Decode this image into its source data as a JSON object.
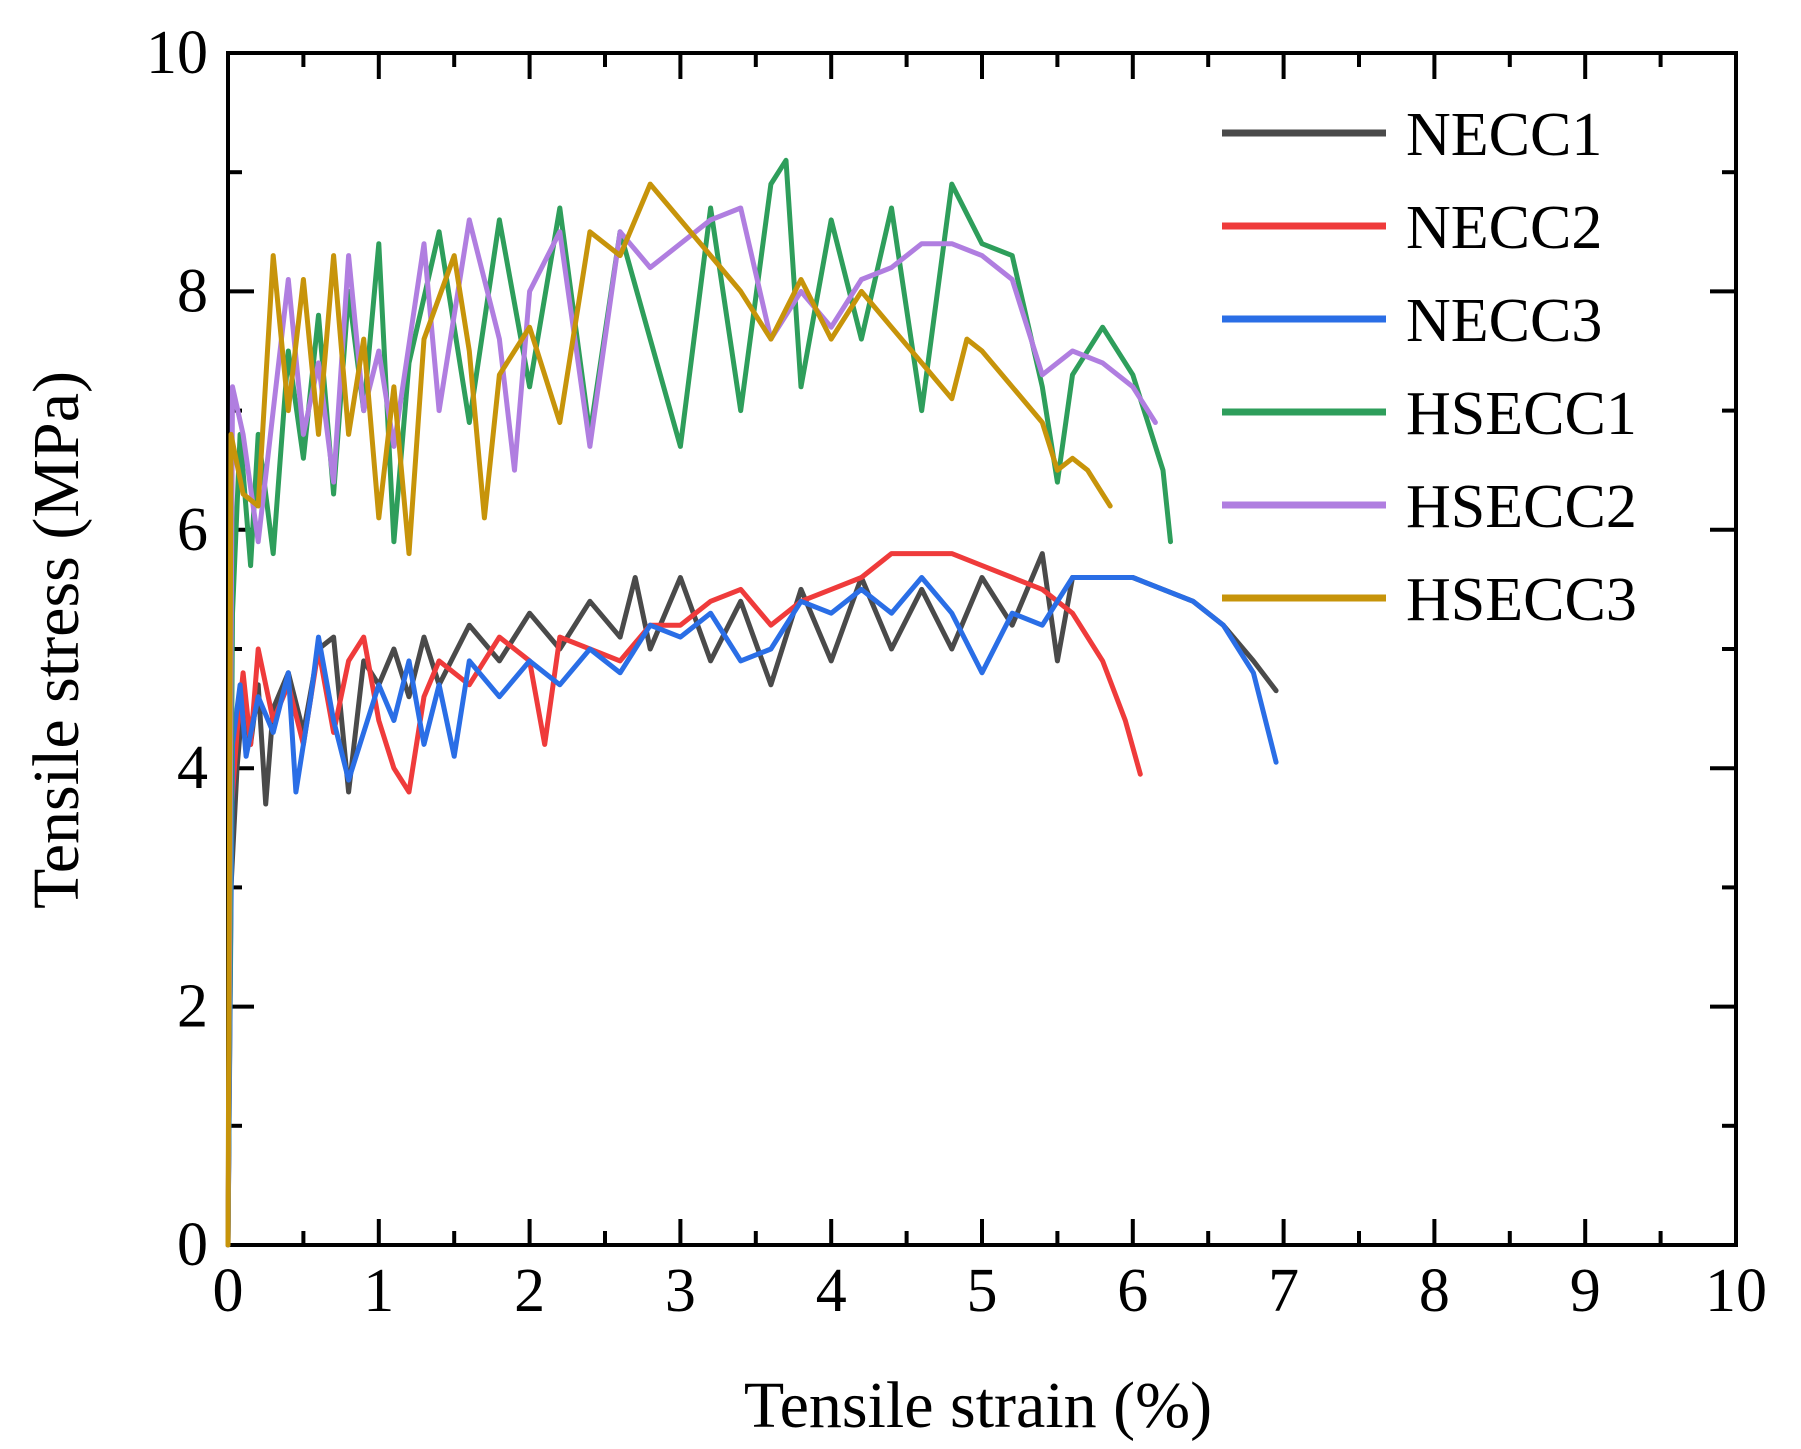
{
  "chart_data": {
    "type": "line",
    "title": "",
    "xlabel": "Tensile strain (%)",
    "ylabel": "Tensile stress (MPa)",
    "xlim": [
      0,
      10
    ],
    "ylim": [
      0,
      10
    ],
    "xticks": [
      0,
      1,
      2,
      3,
      4,
      5,
      6,
      7,
      8,
      9,
      10
    ],
    "yticks": [
      0,
      2,
      4,
      6,
      8,
      10
    ],
    "grid": false,
    "legend_position": "top-right",
    "series": [
      {
        "name": "NECC1",
        "color": "#4a4a4a",
        "points": [
          [
            0,
            0
          ],
          [
            0.02,
            3.0
          ],
          [
            0.06,
            4.0
          ],
          [
            0.1,
            4.6
          ],
          [
            0.15,
            4.2
          ],
          [
            0.2,
            4.7
          ],
          [
            0.25,
            3.7
          ],
          [
            0.3,
            4.5
          ],
          [
            0.4,
            4.8
          ],
          [
            0.5,
            4.3
          ],
          [
            0.6,
            5.0
          ],
          [
            0.7,
            5.1
          ],
          [
            0.8,
            3.8
          ],
          [
            0.9,
            4.9
          ],
          [
            1.0,
            4.7
          ],
          [
            1.1,
            5.0
          ],
          [
            1.2,
            4.6
          ],
          [
            1.3,
            5.1
          ],
          [
            1.4,
            4.7
          ],
          [
            1.6,
            5.2
          ],
          [
            1.8,
            4.9
          ],
          [
            2.0,
            5.3
          ],
          [
            2.2,
            5.0
          ],
          [
            2.4,
            5.4
          ],
          [
            2.6,
            5.1
          ],
          [
            2.7,
            5.6
          ],
          [
            2.8,
            5.0
          ],
          [
            3.0,
            5.6
          ],
          [
            3.2,
            4.9
          ],
          [
            3.4,
            5.4
          ],
          [
            3.6,
            4.7
          ],
          [
            3.8,
            5.5
          ],
          [
            4.0,
            4.9
          ],
          [
            4.2,
            5.6
          ],
          [
            4.4,
            5.0
          ],
          [
            4.6,
            5.5
          ],
          [
            4.8,
            5.0
          ],
          [
            5.0,
            5.6
          ],
          [
            5.2,
            5.2
          ],
          [
            5.4,
            5.8
          ],
          [
            5.5,
            4.9
          ],
          [
            5.6,
            5.6
          ],
          [
            5.8,
            5.6
          ],
          [
            6.0,
            5.6
          ],
          [
            6.2,
            5.5
          ],
          [
            6.4,
            5.4
          ],
          [
            6.6,
            5.2
          ],
          [
            6.8,
            4.9
          ],
          [
            6.95,
            4.65
          ]
        ]
      },
      {
        "name": "NECC2",
        "color": "#ef3b3b",
        "points": [
          [
            0,
            0
          ],
          [
            0.02,
            3.6
          ],
          [
            0.06,
            4.3
          ],
          [
            0.1,
            4.8
          ],
          [
            0.15,
            4.2
          ],
          [
            0.2,
            5.0
          ],
          [
            0.3,
            4.4
          ],
          [
            0.4,
            4.7
          ],
          [
            0.5,
            4.2
          ],
          [
            0.6,
            5.0
          ],
          [
            0.7,
            4.3
          ],
          [
            0.8,
            4.9
          ],
          [
            0.9,
            5.1
          ],
          [
            1.0,
            4.4
          ],
          [
            1.1,
            4.0
          ],
          [
            1.2,
            3.8
          ],
          [
            1.3,
            4.6
          ],
          [
            1.4,
            4.9
          ],
          [
            1.6,
            4.7
          ],
          [
            1.8,
            5.1
          ],
          [
            2.0,
            4.9
          ],
          [
            2.1,
            4.2
          ],
          [
            2.2,
            5.1
          ],
          [
            2.4,
            5.0
          ],
          [
            2.6,
            4.9
          ],
          [
            2.8,
            5.2
          ],
          [
            3.0,
            5.2
          ],
          [
            3.2,
            5.4
          ],
          [
            3.4,
            5.5
          ],
          [
            3.6,
            5.2
          ],
          [
            3.8,
            5.4
          ],
          [
            4.0,
            5.5
          ],
          [
            4.2,
            5.6
          ],
          [
            4.4,
            5.8
          ],
          [
            4.6,
            5.8
          ],
          [
            4.8,
            5.8
          ],
          [
            5.0,
            5.7
          ],
          [
            5.2,
            5.6
          ],
          [
            5.4,
            5.5
          ],
          [
            5.6,
            5.3
          ],
          [
            5.8,
            4.9
          ],
          [
            5.95,
            4.4
          ],
          [
            6.05,
            3.95
          ]
        ]
      },
      {
        "name": "NECC3",
        "color": "#2a6ee6",
        "points": [
          [
            0,
            0
          ],
          [
            0.03,
            4.2
          ],
          [
            0.08,
            4.7
          ],
          [
            0.12,
            4.1
          ],
          [
            0.2,
            4.6
          ],
          [
            0.3,
            4.3
          ],
          [
            0.4,
            4.8
          ],
          [
            0.45,
            3.8
          ],
          [
            0.55,
            4.6
          ],
          [
            0.6,
            5.1
          ],
          [
            0.7,
            4.4
          ],
          [
            0.8,
            3.9
          ],
          [
            0.9,
            4.3
          ],
          [
            1.0,
            4.7
          ],
          [
            1.1,
            4.4
          ],
          [
            1.2,
            4.9
          ],
          [
            1.3,
            4.2
          ],
          [
            1.4,
            4.7
          ],
          [
            1.5,
            4.1
          ],
          [
            1.6,
            4.9
          ],
          [
            1.8,
            4.6
          ],
          [
            2.0,
            4.9
          ],
          [
            2.2,
            4.7
          ],
          [
            2.4,
            5.0
          ],
          [
            2.6,
            4.8
          ],
          [
            2.8,
            5.2
          ],
          [
            3.0,
            5.1
          ],
          [
            3.2,
            5.3
          ],
          [
            3.4,
            4.9
          ],
          [
            3.6,
            5.0
          ],
          [
            3.8,
            5.4
          ],
          [
            4.0,
            5.3
          ],
          [
            4.2,
            5.5
          ],
          [
            4.4,
            5.3
          ],
          [
            4.6,
            5.6
          ],
          [
            4.8,
            5.3
          ],
          [
            5.0,
            4.8
          ],
          [
            5.2,
            5.3
          ],
          [
            5.4,
            5.2
          ],
          [
            5.6,
            5.6
          ],
          [
            5.8,
            5.6
          ],
          [
            6.0,
            5.6
          ],
          [
            6.2,
            5.5
          ],
          [
            6.4,
            5.4
          ],
          [
            6.6,
            5.2
          ],
          [
            6.8,
            4.8
          ],
          [
            6.95,
            4.05
          ]
        ]
      },
      {
        "name": "HSECC1",
        "color": "#2e9e5b",
        "points": [
          [
            0,
            0
          ],
          [
            0.03,
            5.3
          ],
          [
            0.08,
            6.8
          ],
          [
            0.15,
            5.7
          ],
          [
            0.2,
            6.8
          ],
          [
            0.3,
            5.8
          ],
          [
            0.4,
            7.5
          ],
          [
            0.5,
            6.6
          ],
          [
            0.6,
            7.8
          ],
          [
            0.7,
            6.3
          ],
          [
            0.8,
            8.0
          ],
          [
            0.9,
            7.0
          ],
          [
            1.0,
            8.4
          ],
          [
            1.1,
            5.9
          ],
          [
            1.2,
            7.4
          ],
          [
            1.4,
            8.5
          ],
          [
            1.6,
            6.9
          ],
          [
            1.8,
            8.6
          ],
          [
            2.0,
            7.2
          ],
          [
            2.2,
            8.7
          ],
          [
            2.4,
            6.8
          ],
          [
            2.6,
            8.5
          ],
          [
            2.8,
            7.6
          ],
          [
            3.0,
            6.7
          ],
          [
            3.2,
            8.7
          ],
          [
            3.4,
            7.0
          ],
          [
            3.6,
            8.9
          ],
          [
            3.7,
            9.1
          ],
          [
            3.8,
            7.2
          ],
          [
            4.0,
            8.6
          ],
          [
            4.2,
            7.6
          ],
          [
            4.4,
            8.7
          ],
          [
            4.6,
            7.0
          ],
          [
            4.8,
            8.9
          ],
          [
            5.0,
            8.4
          ],
          [
            5.2,
            8.3
          ],
          [
            5.4,
            7.2
          ],
          [
            5.5,
            6.4
          ],
          [
            5.6,
            7.3
          ],
          [
            5.8,
            7.7
          ],
          [
            6.0,
            7.3
          ],
          [
            6.2,
            6.5
          ],
          [
            6.25,
            5.9
          ]
        ]
      },
      {
        "name": "HSECC2",
        "color": "#b07ee0",
        "points": [
          [
            0,
            0
          ],
          [
            0.03,
            7.2
          ],
          [
            0.1,
            6.8
          ],
          [
            0.2,
            5.9
          ],
          [
            0.3,
            7.0
          ],
          [
            0.4,
            8.1
          ],
          [
            0.5,
            6.8
          ],
          [
            0.6,
            7.4
          ],
          [
            0.7,
            6.4
          ],
          [
            0.8,
            8.3
          ],
          [
            0.9,
            7.0
          ],
          [
            1.0,
            7.5
          ],
          [
            1.1,
            6.7
          ],
          [
            1.3,
            8.4
          ],
          [
            1.4,
            7.0
          ],
          [
            1.6,
            8.6
          ],
          [
            1.8,
            7.6
          ],
          [
            1.9,
            6.5
          ],
          [
            2.0,
            8.0
          ],
          [
            2.2,
            8.5
          ],
          [
            2.4,
            6.7
          ],
          [
            2.6,
            8.5
          ],
          [
            2.8,
            8.2
          ],
          [
            3.0,
            8.4
          ],
          [
            3.2,
            8.6
          ],
          [
            3.4,
            8.7
          ],
          [
            3.6,
            7.6
          ],
          [
            3.8,
            8.0
          ],
          [
            4.0,
            7.7
          ],
          [
            4.2,
            8.1
          ],
          [
            4.4,
            8.2
          ],
          [
            4.6,
            8.4
          ],
          [
            4.8,
            8.4
          ],
          [
            5.0,
            8.3
          ],
          [
            5.2,
            8.1
          ],
          [
            5.4,
            7.3
          ],
          [
            5.6,
            7.5
          ],
          [
            5.8,
            7.4
          ],
          [
            6.0,
            7.2
          ],
          [
            6.15,
            6.9
          ]
        ]
      },
      {
        "name": "HSECC3",
        "color": "#c7940a",
        "points": [
          [
            0,
            0
          ],
          [
            0.02,
            6.8
          ],
          [
            0.1,
            6.3
          ],
          [
            0.2,
            6.2
          ],
          [
            0.3,
            8.3
          ],
          [
            0.4,
            7.0
          ],
          [
            0.5,
            8.1
          ],
          [
            0.6,
            6.8
          ],
          [
            0.7,
            8.3
          ],
          [
            0.8,
            6.8
          ],
          [
            0.9,
            7.6
          ],
          [
            1.0,
            6.1
          ],
          [
            1.1,
            7.2
          ],
          [
            1.2,
            5.8
          ],
          [
            1.3,
            7.6
          ],
          [
            1.5,
            8.3
          ],
          [
            1.6,
            7.5
          ],
          [
            1.7,
            6.1
          ],
          [
            1.8,
            7.3
          ],
          [
            2.0,
            7.7
          ],
          [
            2.2,
            6.9
          ],
          [
            2.4,
            8.5
          ],
          [
            2.6,
            8.3
          ],
          [
            2.8,
            8.9
          ],
          [
            3.0,
            8.6
          ],
          [
            3.2,
            8.3
          ],
          [
            3.4,
            8.0
          ],
          [
            3.6,
            7.6
          ],
          [
            3.8,
            8.1
          ],
          [
            4.0,
            7.6
          ],
          [
            4.2,
            8.0
          ],
          [
            4.4,
            7.7
          ],
          [
            4.6,
            7.4
          ],
          [
            4.8,
            7.1
          ],
          [
            4.9,
            7.6
          ],
          [
            5.0,
            7.5
          ],
          [
            5.2,
            7.2
          ],
          [
            5.4,
            6.9
          ],
          [
            5.5,
            6.5
          ],
          [
            5.6,
            6.6
          ],
          [
            5.7,
            6.5
          ],
          [
            5.8,
            6.3
          ],
          [
            5.85,
            6.2
          ]
        ]
      }
    ]
  }
}
